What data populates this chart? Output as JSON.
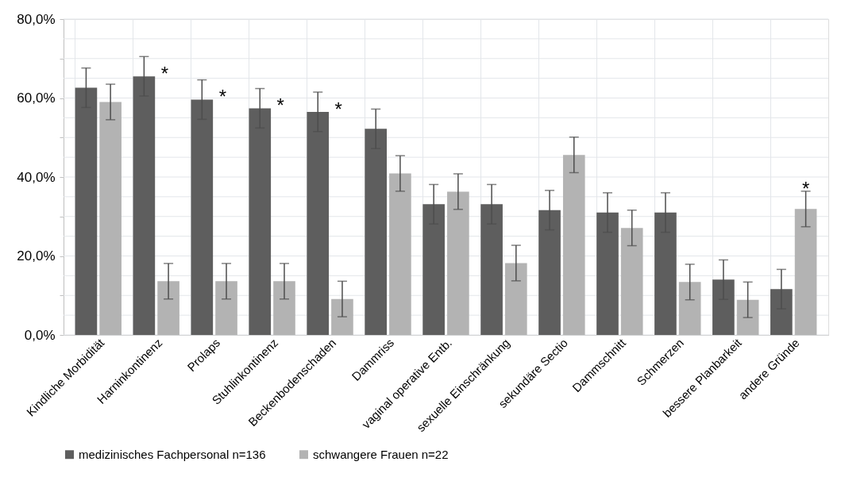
{
  "chart_data": {
    "type": "bar",
    "categories": [
      "Kindliche Morbidität",
      "Harninkontinenz",
      "Prolaps",
      "Stuhlinkontinenz",
      "Beckenbodenschaden",
      "Dammriss",
      "vaginal operative Entb.",
      "sexuelle Einschränkung",
      "sekundäre Sectio",
      "Dammschnitt",
      "Schmerzen",
      "bessere Planbarkeit",
      "andere Gründe"
    ],
    "series": [
      {
        "name": "medizinisches Fachpersonal n=136",
        "color": "#5e5e5e",
        "values": [
          62.6,
          65.5,
          59.6,
          57.4,
          56.5,
          52.2,
          33.1,
          33.1,
          31.6,
          31.0,
          31.0,
          14.0,
          11.6
        ],
        "errors": [
          5,
          5,
          5,
          5,
          5,
          5,
          5,
          5,
          5,
          5,
          5,
          5,
          5
        ],
        "value_labels": [
          null,
          "*",
          "*",
          "*",
          "*",
          null,
          null,
          null,
          null,
          null,
          null,
          null,
          null
        ]
      },
      {
        "name": "schwangere Frauen n=22",
        "color": "#b3b3b3",
        "values": [
          59.0,
          13.6,
          13.6,
          13.6,
          9.1,
          40.9,
          36.3,
          18.2,
          45.6,
          27.1,
          13.4,
          8.9,
          31.9
        ],
        "errors": [
          4.5,
          4.5,
          4.5,
          4.5,
          4.5,
          4.5,
          4.5,
          4.5,
          4.5,
          4.5,
          4.5,
          4.5,
          4.5
        ],
        "value_labels": [
          null,
          null,
          null,
          null,
          null,
          null,
          null,
          null,
          null,
          null,
          null,
          null,
          "*"
        ]
      }
    ],
    "ylim": [
      0,
      80
    ],
    "yticks": [
      {
        "value": 0,
        "label": "0,0%"
      },
      {
        "value": 5,
        "label": null
      },
      {
        "value": 10,
        "label": null
      },
      {
        "value": 15,
        "label": null
      },
      {
        "value": 20,
        "label": "20,0%"
      },
      {
        "value": 25,
        "label": null
      },
      {
        "value": 30,
        "label": null
      },
      {
        "value": 35,
        "label": null
      },
      {
        "value": 40,
        "label": "40,0%"
      },
      {
        "value": 45,
        "label": null
      },
      {
        "value": 50,
        "label": null
      },
      {
        "value": 55,
        "label": null
      },
      {
        "value": 60,
        "label": "60,0%"
      },
      {
        "value": 65,
        "label": null
      },
      {
        "value": 70,
        "label": null
      },
      {
        "value": 75,
        "label": null
      },
      {
        "value": 80,
        "label": "80,0%"
      }
    ],
    "grid": true,
    "legend": "bottom"
  }
}
